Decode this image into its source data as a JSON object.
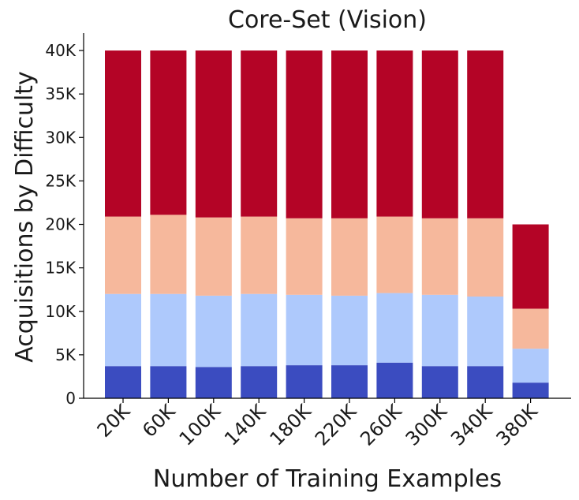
{
  "chart_data": {
    "type": "bar",
    "stacked": true,
    "title": "Core-Set (Vision)",
    "xlabel": "Number of Training Examples",
    "ylabel": "Acquisitions by Difficulty",
    "categories": [
      "20K",
      "60K",
      "100K",
      "140K",
      "180K",
      "220K",
      "260K",
      "300K",
      "340K",
      "380K"
    ],
    "ylim": [
      0,
      42000
    ],
    "yticks": [
      0,
      5000,
      10000,
      15000,
      20000,
      25000,
      30000,
      35000,
      40000
    ],
    "ytick_labels": [
      "0",
      "5K",
      "10K",
      "15K",
      "20K",
      "25K",
      "30K",
      "35K",
      "40K"
    ],
    "grid": false,
    "legend": "none",
    "series": [
      {
        "color": "#3b4cc0",
        "values": [
          3700,
          3700,
          3600,
          3700,
          3800,
          3800,
          4100,
          3700,
          3700,
          1800
        ]
      },
      {
        "color": "#aec9fc",
        "values": [
          8300,
          8300,
          8200,
          8300,
          8100,
          8000,
          8000,
          8200,
          8000,
          3900
        ]
      },
      {
        "color": "#f6b89c",
        "values": [
          8900,
          9100,
          9000,
          8900,
          8800,
          8900,
          8800,
          8800,
          9000,
          4600
        ]
      },
      {
        "color": "#b40426",
        "values": [
          19100,
          18900,
          19200,
          19100,
          19300,
          19300,
          19100,
          19300,
          19300,
          9700
        ]
      }
    ]
  }
}
